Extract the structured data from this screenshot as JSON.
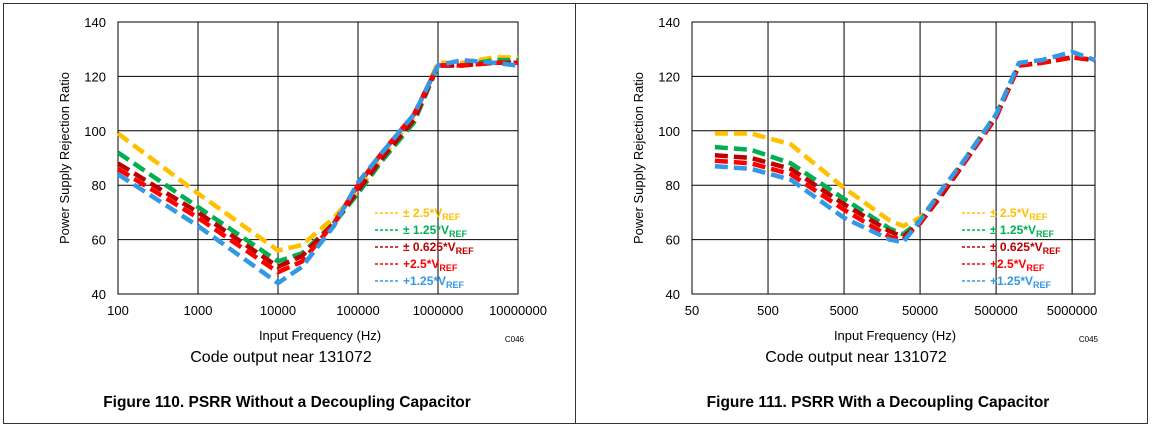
{
  "colors": {
    "yellow": "#ffc000",
    "green": "#00b050",
    "darkred": "#c00000",
    "red": "#ff0000",
    "blue": "#3399e6"
  },
  "chart_data": [
    {
      "type": "line",
      "figure_caption": "Figure 110. PSRR Without a Decoupling Capacitor",
      "subtitle": "Code output near 131072",
      "xlabel": "Input Frequency (Hz)",
      "ylabel": "Power Supply Rejection Ratio",
      "code": "C046",
      "xscale": "log",
      "xlim": [
        100,
        10000000
      ],
      "ylim": [
        40,
        140
      ],
      "grid": true,
      "legend_position": "right-middle",
      "xticks": [
        "100",
        "1000",
        "10000",
        "100000",
        "1000000",
        "10000000"
      ],
      "yticks": [
        "40",
        "60",
        "80",
        "100",
        "120",
        "140"
      ],
      "series": [
        {
          "name": "± 2.5*V",
          "sub": "REF",
          "color": "#ffc000",
          "x": [
            100,
            1000,
            10000,
            20000,
            50000,
            100000,
            200000,
            500000,
            1000000,
            2000000,
            5000000,
            10000000
          ],
          "y": [
            99,
            77,
            56,
            58,
            68,
            78,
            90,
            105,
            125,
            125,
            127,
            127
          ]
        },
        {
          "name": "± 1.25*V",
          "sub": "REF",
          "color": "#00b050",
          "x": [
            100,
            1000,
            10000,
            20000,
            50000,
            100000,
            200000,
            500000,
            1000000,
            2000000,
            5000000,
            10000000
          ],
          "y": [
            92,
            72,
            52,
            55,
            66,
            77,
            89,
            103,
            124,
            124,
            126,
            126
          ]
        },
        {
          "name": "± 0.625*V",
          "sub": "REF",
          "color": "#c00000",
          "x": [
            100,
            1000,
            10000,
            20000,
            50000,
            100000,
            200000,
            500000,
            1000000,
            2000000,
            5000000,
            10000000
          ],
          "y": [
            88,
            70,
            50,
            54,
            66,
            78,
            90,
            104,
            124,
            124,
            125,
            125
          ]
        },
        {
          "name": "+2.5*V",
          "sub": "REF",
          "color": "#ff0000",
          "x": [
            100,
            1000,
            10000,
            20000,
            50000,
            100000,
            200000,
            500000,
            1000000,
            2000000,
            5000000,
            10000000
          ],
          "y": [
            86,
            68,
            48,
            52,
            66,
            80,
            92,
            106,
            124,
            124,
            125,
            125
          ]
        },
        {
          "name": "+1.25*V",
          "sub": "REF",
          "color": "#3399e6",
          "x": [
            100,
            1000,
            10000,
            20000,
            50000,
            100000,
            200000,
            500000,
            1000000,
            2000000,
            5000000,
            10000000
          ],
          "y": [
            84,
            65,
            44,
            50,
            65,
            81,
            92,
            106,
            124,
            126,
            125,
            124
          ]
        }
      ]
    },
    {
      "type": "line",
      "figure_caption": "Figure 111. PSRR With a Decoupling Capacitor",
      "subtitle": "Code output near 131072",
      "xlabel": "Input Frequency (Hz)",
      "ylabel": "Power Supply Rejection Ratio",
      "code": "C045",
      "xscale": "log",
      "xlim": [
        50,
        10000000
      ],
      "ylim": [
        40,
        140
      ],
      "grid": true,
      "legend_position": "right-middle",
      "xticks": [
        "50",
        "500",
        "5000",
        "50000",
        "500000",
        "5000000"
      ],
      "yticks": [
        "40",
        "60",
        "80",
        "100",
        "120",
        "140"
      ],
      "series": [
        {
          "name": "± 2.5*V",
          "sub": "REF",
          "color": "#ffc000",
          "x": [
            100,
            300,
            1000,
            5000,
            20000,
            30000,
            50000,
            100000,
            200000,
            500000,
            1000000,
            2000000,
            5000000,
            10000000
          ],
          "y": [
            99,
            99,
            95,
            79,
            67,
            65,
            68,
            78,
            90,
            106,
            124,
            125,
            127,
            126
          ]
        },
        {
          "name": "± 1.25*V",
          "sub": "REF",
          "color": "#00b050",
          "x": [
            100,
            300,
            1000,
            5000,
            20000,
            30000,
            50000,
            100000,
            200000,
            500000,
            1000000,
            2000000,
            5000000,
            10000000
          ],
          "y": [
            94,
            93,
            88,
            75,
            64,
            62,
            67,
            78,
            90,
            106,
            124,
            125,
            127,
            126
          ]
        },
        {
          "name": "± 0.625*V",
          "sub": "REF",
          "color": "#c00000",
          "x": [
            100,
            300,
            1000,
            5000,
            20000,
            30000,
            50000,
            100000,
            200000,
            500000,
            1000000,
            2000000,
            5000000,
            10000000
          ],
          "y": [
            91,
            90,
            86,
            73,
            63,
            61,
            66,
            77,
            89,
            105,
            124,
            125,
            127,
            126
          ]
        },
        {
          "name": "+2.5*V",
          "sub": "REF",
          "color": "#ff0000",
          "x": [
            100,
            300,
            1000,
            5000,
            20000,
            30000,
            50000,
            100000,
            200000,
            500000,
            1000000,
            2000000,
            5000000,
            10000000
          ],
          "y": [
            89,
            88,
            84,
            71,
            61,
            60,
            66,
            78,
            89,
            105,
            124,
            125,
            127,
            126
          ]
        },
        {
          "name": "+1.25*V",
          "sub": "REF",
          "color": "#3399e6",
          "x": [
            100,
            300,
            1000,
            5000,
            20000,
            30000,
            50000,
            100000,
            200000,
            500000,
            1000000,
            2000000,
            5000000,
            10000000
          ],
          "y": [
            87,
            86,
            82,
            68,
            60,
            59,
            67,
            79,
            90,
            106,
            125,
            126,
            129,
            126
          ]
        }
      ]
    }
  ]
}
